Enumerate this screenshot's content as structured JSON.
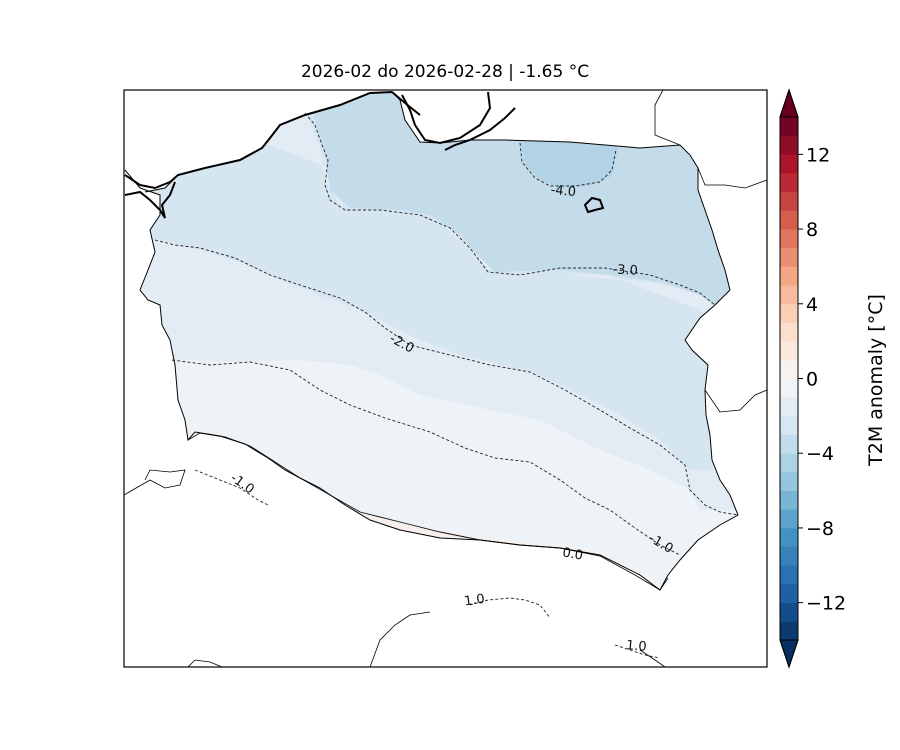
{
  "map": {
    "title": "2026-02 do 2026-02-28 | -1.65 °C",
    "region": "Poland",
    "variable": "T2M anomaly",
    "fill_style": "filled contours",
    "contour_labels": [
      {
        "value": -4.0,
        "text": "-4.0"
      },
      {
        "value": -3.0,
        "text": "-3.0"
      },
      {
        "value": -2.0,
        "text": "-2.0"
      },
      {
        "value": -1.0,
        "text": "-1.0"
      },
      {
        "value": -1.0,
        "text": "-1.0"
      },
      {
        "value": 0.0,
        "text": "0.0"
      },
      {
        "value": 1.0,
        "text": "1.0"
      },
      {
        "value": 1.0,
        "text": "1.0"
      }
    ]
  },
  "colorbar": {
    "label": "T2M anomaly [°C]",
    "min": -14,
    "max": 14,
    "step": 1,
    "extend": "both",
    "colormap": "RdBu_r",
    "ticks": [
      {
        "value": 12,
        "text": "12"
      },
      {
        "value": 8,
        "text": "8"
      },
      {
        "value": 4,
        "text": "4"
      },
      {
        "value": 0,
        "text": "0"
      },
      {
        "value": -4,
        "text": "−4"
      },
      {
        "value": -8,
        "text": "−8"
      },
      {
        "value": -12,
        "text": "−12"
      }
    ],
    "colors": {
      "low": "#053061",
      "mid": "#f7f7f7",
      "high": "#67001f"
    }
  }
}
